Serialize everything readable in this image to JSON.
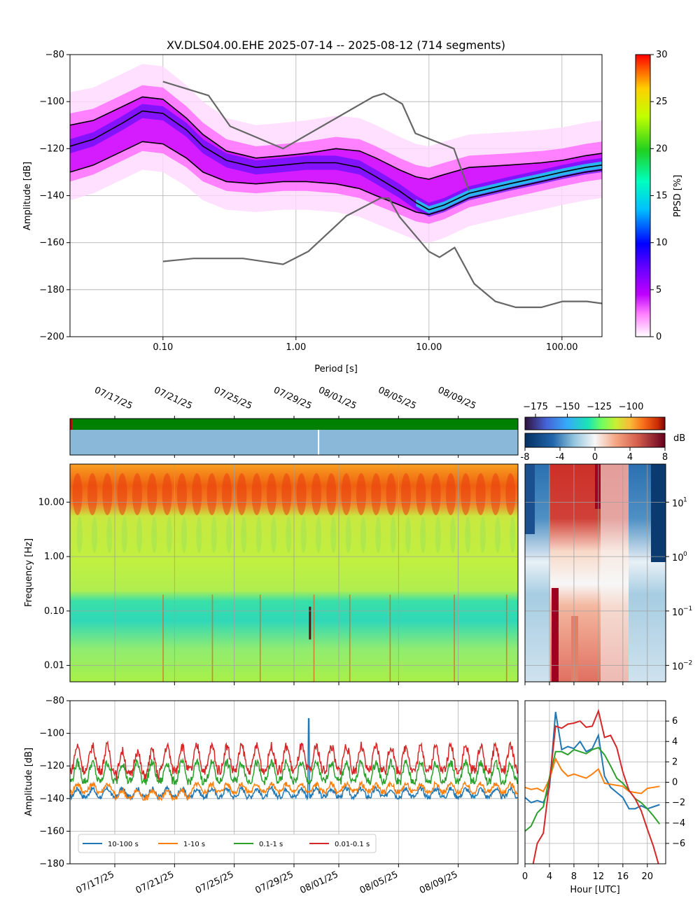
{
  "chart_data": [
    {
      "type": "heatmap",
      "title": "XV.DLS04.00.EHE   2025-07-14 -- 2025-08-12  (714 segments)",
      "xlabel": "Period [s]",
      "ylabel": "Amplitude [dB]",
      "x_scale": "log",
      "xlim": [
        0.02,
        200
      ],
      "ylim": [
        -200,
        -80
      ],
      "x_ticks": [
        0.1,
        1,
        10,
        100
      ],
      "x_tick_labels": [
        "0.10",
        "1.00",
        "10.00",
        "100.00"
      ],
      "y_ticks": [
        -200,
        -180,
        -160,
        -140,
        -120,
        -100,
        -80
      ],
      "y_tick_labels": [
        "−200",
        "−180",
        "−160",
        "−140",
        "−120",
        "−100",
        "−80"
      ],
      "grid": true,
      "colorbar": {
        "label": "PPSD [%]",
        "range": [
          0,
          30
        ],
        "ticks": [
          "0",
          "5",
          "10",
          "15",
          "20",
          "25",
          "30"
        ]
      },
      "series": [
        {
          "role": "percentile-upper",
          "color": "#000000",
          "x": [
            0.02,
            0.03,
            0.05,
            0.07,
            0.1,
            0.15,
            0.2,
            0.3,
            0.5,
            0.8,
            1.2,
            2,
            3,
            4,
            6,
            8,
            10,
            13,
            20,
            40,
            70,
            100,
            150,
            200
          ],
          "y": [
            -110,
            -108,
            -102,
            -98,
            -99,
            -107,
            -114,
            -121,
            -124,
            -123,
            -122,
            -120,
            -121,
            -124,
            -129,
            -132,
            -133,
            -131,
            -128,
            -127,
            -126,
            -125,
            -123,
            -122
          ]
        },
        {
          "role": "mode",
          "color": "#000000",
          "x": [
            0.02,
            0.03,
            0.05,
            0.07,
            0.1,
            0.15,
            0.2,
            0.3,
            0.5,
            0.8,
            1.2,
            2,
            3,
            4,
            6,
            8,
            10,
            13,
            20,
            40,
            70,
            100,
            150,
            200
          ],
          "y": [
            -119,
            -116,
            -109,
            -104,
            -105,
            -112,
            -119,
            -125,
            -128,
            -127,
            -126,
            -126,
            -128,
            -132,
            -138,
            -143,
            -146,
            -144,
            -139,
            -135,
            -132,
            -130,
            -128,
            -127
          ]
        },
        {
          "role": "percentile-lower",
          "color": "#000000",
          "x": [
            0.02,
            0.03,
            0.05,
            0.07,
            0.1,
            0.15,
            0.2,
            0.3,
            0.5,
            0.8,
            1.2,
            2,
            3,
            4,
            6,
            8,
            10,
            13,
            20,
            40,
            70,
            100,
            150,
            200
          ],
          "y": [
            -130,
            -127,
            -121,
            -117,
            -118,
            -124,
            -130,
            -134,
            -135,
            -134,
            -134,
            -135,
            -137,
            -140,
            -144,
            -147,
            -148,
            -146,
            -141,
            -137,
            -134,
            -132,
            -130,
            -129
          ]
        },
        {
          "role": "high-noise-model",
          "color": "#666666",
          "x": [
            0.1,
            0.22,
            0.32,
            0.8,
            3.8,
            4.6,
            6.3,
            7.9,
            15.4,
            20
          ],
          "y": [
            -91.5,
            -97.4,
            -110.5,
            -120,
            -98,
            -96.5,
            -101,
            -113.5,
            -120,
            -138
          ]
        },
        {
          "role": "low-noise-model",
          "color": "#666666",
          "x": [
            0.1,
            0.17,
            0.4,
            0.8,
            1.24,
            2.4,
            4.3,
            5.0,
            6.0,
            10,
            12,
            15.6,
            21.9,
            31.6,
            45,
            70,
            101,
            154,
            328
          ],
          "y": [
            -168,
            -166.7,
            -166.7,
            -169.2,
            -163.7,
            -148.6,
            -141.1,
            -141.1,
            -149,
            -163.8,
            -166.2,
            -162.1,
            -177.5,
            -185,
            -187.5,
            -187.5,
            -185,
            -185,
            -187.5
          ]
        }
      ]
    },
    {
      "type": "heatmap",
      "ylabel": "Frequency [Hz]",
      "y_scale": "log",
      "ylim": [
        0.005,
        50
      ],
      "y_ticks": [
        0.01,
        0.1,
        1,
        10
      ],
      "y_tick_labels": [
        "0.01",
        "0.10",
        "1.00",
        "10.00"
      ],
      "x_tick_labels": [
        "07/17/25",
        "07/21/25",
        "07/25/25",
        "07/29/25",
        "08/01/25",
        "08/05/25",
        "08/09/25"
      ],
      "x_tick_days": [
        3,
        7,
        11,
        15,
        18,
        22,
        26
      ],
      "xlim_days": [
        0,
        30
      ],
      "availability_colors": {
        "data": "#008000",
        "gap": "#c00000"
      },
      "gap_day": 16.6
    },
    {
      "type": "line",
      "xlabel": "",
      "ylabel": "Amplitude [dB]",
      "ylim": [
        -180,
        -80
      ],
      "y_ticks": [
        -180,
        -160,
        -140,
        -120,
        -100,
        -80
      ],
      "y_tick_labels": [
        "−180",
        "−160",
        "−140",
        "−120",
        "−100",
        "−80"
      ],
      "x_tick_labels": [
        "07/17/25",
        "07/21/25",
        "07/25/25",
        "07/29/25",
        "08/01/25",
        "08/05/25",
        "08/09/25"
      ],
      "legend": "lower-left",
      "grid": true,
      "series": [
        {
          "name": "10-100 s",
          "color": "#1f77b4",
          "base": -137,
          "amp": 3
        },
        {
          "name": "1-10 s",
          "color": "#ff7f0e",
          "base": -134,
          "amp": 3
        },
        {
          "name": "0.1-1 s",
          "color": "#2ca02c",
          "base": -125,
          "amp": 7
        },
        {
          "name": "0.01-0.1 s",
          "color": "#d62728",
          "base": -117,
          "amp": 9
        }
      ]
    },
    {
      "type": "line",
      "xlabel": "Hour [UTC]",
      "xlim": [
        0,
        23
      ],
      "ylim": [
        -8,
        8
      ],
      "x_ticks": [
        0,
        4,
        8,
        12,
        16,
        20
      ],
      "x_tick_labels": [
        "0",
        "4",
        "8",
        "12",
        "16",
        "20"
      ],
      "y_ticks": [
        -6,
        -4,
        -2,
        0,
        2,
        4,
        6
      ],
      "y_tick_labels": [
        "−6",
        "−4",
        "−2",
        "0",
        "2",
        "4",
        "6"
      ],
      "grid": true,
      "x": [
        0,
        1,
        2,
        3,
        4,
        5,
        6,
        7,
        8,
        9,
        10,
        11,
        12,
        13,
        14,
        15,
        16,
        17,
        18,
        19,
        20,
        21,
        22
      ],
      "series": [
        {
          "color": "#1f77b4",
          "values": [
            -1.5,
            -2,
            -1.8,
            -2,
            -0.5,
            6.9,
            3.2,
            3.5,
            3.3,
            4.0,
            3.0,
            3.3,
            4.6,
            0.6,
            -0.5,
            -1,
            -1.5,
            -2.6,
            -2.6,
            -2.3,
            -2.6,
            -2.4,
            -2.2
          ]
        },
        {
          "color": "#ff7f0e",
          "values": [
            -0.5,
            -0.7,
            -0.6,
            -0.9,
            0.3,
            2.3,
            1.2,
            0.6,
            0.8,
            0.6,
            0.4,
            0.8,
            1.3,
            -0.1,
            -0.2,
            -0.3,
            -0.4,
            -0.9,
            -1.0,
            -1.1,
            -0.6,
            -0.5,
            -0.4
          ]
        },
        {
          "color": "#2ca02c",
          "values": [
            -4.8,
            -4.3,
            -3,
            -2.4,
            0.5,
            3,
            3,
            2.7,
            3.2,
            3,
            2.8,
            3.2,
            3.4,
            2.7,
            1.6,
            0.4,
            -0.1,
            -0.8,
            -1.6,
            -2,
            -2.6,
            -3.3,
            -4.1
          ]
        },
        {
          "color": "#d62728",
          "values": [
            -10,
            -9,
            -6,
            -5,
            0,
            5.5,
            5.3,
            5.7,
            5.8,
            6,
            5.4,
            5.5,
            7,
            4.4,
            4.6,
            3.4,
            1,
            -0.8,
            -1.6,
            -2.8,
            -4.6,
            -6.3,
            -8.4
          ]
        }
      ]
    },
    {
      "type": "heatmap",
      "colorbar_top": {
        "ticks": [
          "−175",
          "−150",
          "−125",
          "−100"
        ]
      },
      "colorbar_diff": {
        "label": "dB",
        "ticks": [
          "-8",
          "-4",
          "0",
          "4",
          "8"
        ]
      },
      "y_tick_labels_log": [
        "10",
        "10",
        "10",
        "10"
      ],
      "y_tick_exponents": [
        "1",
        "0",
        "−1",
        "−2"
      ]
    }
  ]
}
